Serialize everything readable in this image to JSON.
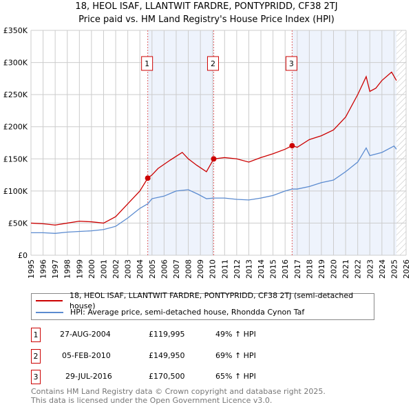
{
  "title": "18, HEOL ISAF, LLANTWIT FARDRE, PONTYPRIDD, CF38 2TJ",
  "subtitle": "Price paid vs. HM Land Registry's House Price Index (HPI)",
  "chart_data": {
    "type": "line",
    "xlim": [
      1995,
      2026
    ],
    "ylim": [
      0,
      350000
    ],
    "x_ticks": [
      "1995",
      "1996",
      "1997",
      "1998",
      "1999",
      "2000",
      "2001",
      "2002",
      "2003",
      "2004",
      "2005",
      "2006",
      "2007",
      "2008",
      "2009",
      "2010",
      "2011",
      "2012",
      "2013",
      "2014",
      "2015",
      "2016",
      "2017",
      "2018",
      "2019",
      "2020",
      "2021",
      "2022",
      "2023",
      "2024",
      "2025",
      "2026"
    ],
    "y_ticks": [
      {
        "v": 0,
        "label": "£0"
      },
      {
        "v": 50000,
        "label": "£50K"
      },
      {
        "v": 100000,
        "label": "£100K"
      },
      {
        "v": 150000,
        "label": "£150K"
      },
      {
        "v": 200000,
        "label": "£200K"
      },
      {
        "v": 250000,
        "label": "£250K"
      },
      {
        "v": 300000,
        "label": "£300K"
      },
      {
        "v": 350000,
        "label": "£350K"
      }
    ],
    "grid": true,
    "shaded": [
      [
        2004.65,
        2010.1
      ],
      [
        2016.58,
        2025.2
      ]
    ],
    "hatched_from": 2025.2,
    "series": [
      {
        "name": "18, HEOL ISAF, LLANTWIT FARDRE, PONTYPRIDD, CF38 2TJ (semi-detached house)",
        "color": "#cc0000",
        "x": [
          1995,
          1996,
          1997,
          1998,
          1999,
          2000,
          2001,
          2002,
          2003,
          2004,
          2004.65,
          2005,
          2005.5,
          2006.5,
          2007.5,
          2008,
          2008.7,
          2009.5,
          2010.1,
          2011,
          2012,
          2013,
          2014,
          2015,
          2016,
          2016.58,
          2017,
          2018,
          2019,
          2020,
          2021,
          2022,
          2022.7,
          2023,
          2023.5,
          2024,
          2024.8,
          2025.2
        ],
        "y": [
          50000,
          49000,
          47000,
          50000,
          53000,
          52000,
          50000,
          60000,
          80000,
          100000,
          119995,
          125000,
          135000,
          148000,
          160000,
          150000,
          140000,
          130000,
          149950,
          152000,
          150000,
          145000,
          152000,
          158000,
          165000,
          170500,
          168000,
          180000,
          186000,
          195000,
          215000,
          250000,
          278000,
          255000,
          260000,
          272000,
          285000,
          272000
        ]
      },
      {
        "name": "HPI: Average price, semi-detached house, Rhondda Cynon Taf",
        "color": "#5b8bd0",
        "x": [
          1995,
          1996,
          1997,
          1998,
          1999,
          2000,
          2001,
          2002,
          2003,
          2004,
          2004.65,
          2005,
          2006,
          2007,
          2008,
          2008.8,
          2009.5,
          2010.1,
          2011,
          2012,
          2013,
          2014,
          2015,
          2016,
          2016.58,
          2017,
          2018,
          2019,
          2020,
          2021,
          2022,
          2022.7,
          2023,
          2024,
          2025,
          2025.2
        ],
        "y": [
          35000,
          35000,
          34000,
          36000,
          37000,
          38000,
          40000,
          45000,
          58000,
          73000,
          80000,
          88000,
          92000,
          100000,
          102000,
          95000,
          88000,
          89000,
          89000,
          87000,
          86000,
          89000,
          93000,
          100000,
          103000,
          103000,
          107000,
          113000,
          117000,
          130000,
          145000,
          167000,
          155000,
          160000,
          170000,
          165000
        ]
      }
    ],
    "sales": [
      {
        "label": "1",
        "x": 2004.65,
        "y": 119995,
        "date": "27-AUG-2004",
        "price": "£119,995",
        "hpi": "49% ↑ HPI"
      },
      {
        "label": "2",
        "x": 2010.1,
        "y": 149950,
        "date": "05-FEB-2010",
        "price": "£149,950",
        "hpi": "69% ↑ HPI"
      },
      {
        "label": "3",
        "x": 2016.58,
        "y": 170500,
        "date": "29-JUL-2016",
        "price": "£170,500",
        "hpi": "65% ↑ HPI"
      }
    ]
  },
  "footer": {
    "line1": "Contains HM Land Registry data © Crown copyright and database right 2025.",
    "line2": "This data is licensed under the Open Government Licence v3.0."
  }
}
